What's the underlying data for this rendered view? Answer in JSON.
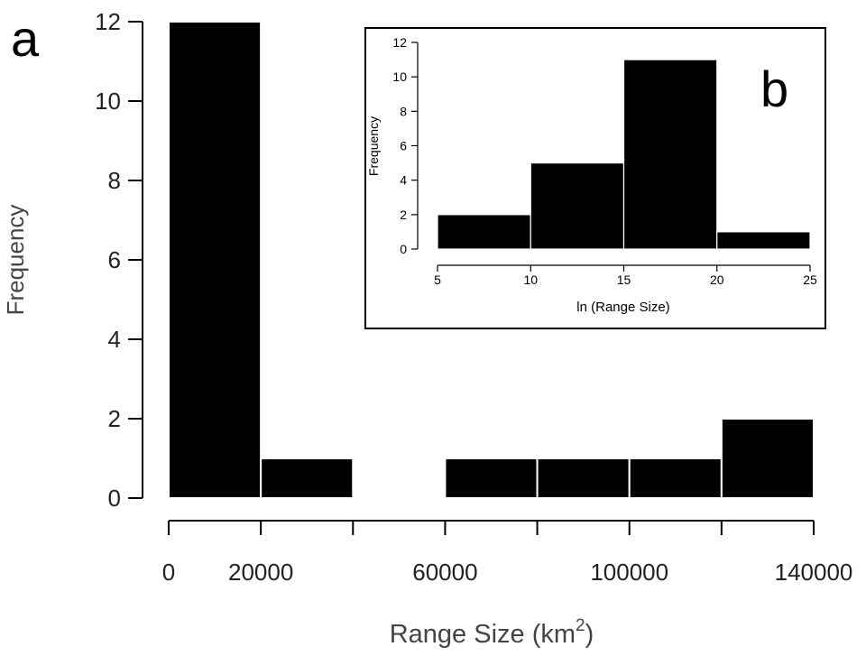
{
  "chart_data": [
    {
      "panel_label": "a",
      "type": "bar",
      "histogram": true,
      "bins": [
        [
          0,
          20000
        ],
        [
          20000,
          40000
        ],
        [
          40000,
          60000
        ],
        [
          60000,
          80000
        ],
        [
          80000,
          100000
        ],
        [
          100000,
          120000
        ],
        [
          120000,
          140000
        ]
      ],
      "values": [
        12,
        1,
        0,
        1,
        1,
        1,
        2
      ],
      "xlabel_main": "Range Size (km",
      "xlabel_sup": "2",
      "xlabel_close": ")",
      "ylabel": "Frequency",
      "xlim": [
        0,
        140000
      ],
      "ylim": [
        0,
        12
      ],
      "xticks": [
        0,
        20000,
        40000,
        60000,
        80000,
        100000,
        120000,
        140000
      ],
      "xtick_labels": [
        {
          "value": 0,
          "label": "0"
        },
        {
          "value": 20000,
          "label": "20000"
        },
        {
          "value": 60000,
          "label": "60000"
        },
        {
          "value": 100000,
          "label": "100000"
        },
        {
          "value": 140000,
          "label": "140000"
        }
      ],
      "yticks": [
        0,
        2,
        4,
        6,
        8,
        10,
        12
      ],
      "ytick_labels": [
        "0",
        "2",
        "4",
        "6",
        "8",
        "10",
        "12"
      ],
      "bar_color": "#000000",
      "bar_edge_color": "#ffffff"
    },
    {
      "panel_label": "b",
      "type": "bar",
      "histogram": true,
      "inset": true,
      "bins": [
        [
          5,
          10
        ],
        [
          10,
          15
        ],
        [
          15,
          20
        ],
        [
          20,
          25
        ]
      ],
      "values": [
        2,
        5,
        11,
        1
      ],
      "xlabel": "ln (Range Size)",
      "ylabel": "Frequency",
      "xlim": [
        5,
        25
      ],
      "ylim": [
        0,
        12
      ],
      "xticks": [
        5,
        10,
        15,
        20,
        25
      ],
      "xtick_labels": [
        "5",
        "10",
        "15",
        "20",
        "25"
      ],
      "yticks": [
        0,
        2,
        4,
        6,
        8,
        10,
        12
      ],
      "ytick_labels": [
        "0",
        "2",
        "4",
        "6",
        "8",
        "10",
        "12"
      ],
      "bar_color": "#000000",
      "bar_edge_color": "#ffffff"
    }
  ]
}
